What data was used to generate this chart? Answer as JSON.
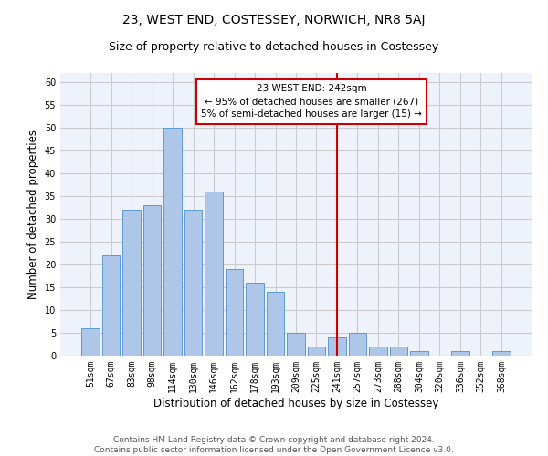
{
  "title": "23, WEST END, COSTESSEY, NORWICH, NR8 5AJ",
  "subtitle": "Size of property relative to detached houses in Costessey",
  "xlabel": "Distribution of detached houses by size in Costessey",
  "ylabel": "Number of detached properties",
  "bar_labels": [
    "51sqm",
    "67sqm",
    "83sqm",
    "98sqm",
    "114sqm",
    "130sqm",
    "146sqm",
    "162sqm",
    "178sqm",
    "193sqm",
    "209sqm",
    "225sqm",
    "241sqm",
    "257sqm",
    "273sqm",
    "288sqm",
    "304sqm",
    "320sqm",
    "336sqm",
    "352sqm",
    "368sqm"
  ],
  "bar_heights": [
    6,
    22,
    32,
    33,
    50,
    32,
    36,
    19,
    16,
    14,
    5,
    2,
    4,
    5,
    2,
    2,
    1,
    0,
    1,
    0,
    1
  ],
  "bar_color": "#aec6e8",
  "bar_edgecolor": "#5b9bd5",
  "reference_line_index": 12,
  "annotation_text": "23 WEST END: 242sqm\n← 95% of detached houses are smaller (267)\n5% of semi-detached houses are larger (15) →",
  "annotation_box_color": "#ffffff",
  "annotation_box_edgecolor": "#cc0000",
  "vline_color": "#cc0000",
  "ylim": [
    0,
    62
  ],
  "yticks": [
    0,
    5,
    10,
    15,
    20,
    25,
    30,
    35,
    40,
    45,
    50,
    55,
    60
  ],
  "grid_color": "#cccccc",
  "bg_color": "#eef2fa",
  "footer_line1": "Contains HM Land Registry data © Crown copyright and database right 2024.",
  "footer_line2": "Contains public sector information licensed under the Open Government Licence v3.0.",
  "title_fontsize": 10,
  "subtitle_fontsize": 9,
  "tick_fontsize": 7,
  "ylabel_fontsize": 8.5,
  "xlabel_fontsize": 8.5,
  "annotation_fontsize": 7.5,
  "footer_fontsize": 6.5
}
